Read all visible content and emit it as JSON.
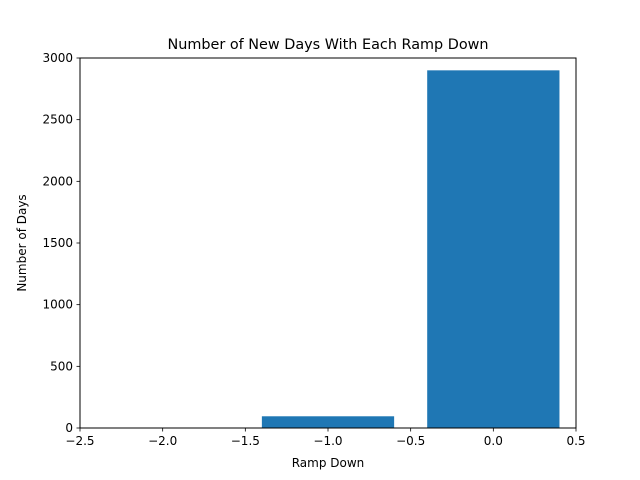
{
  "chart_data": {
    "type": "bar",
    "title": "Number of New Days With Each Ramp Down",
    "xlabel": "Ramp Down",
    "ylabel": "Number of Days",
    "xlim": [
      -2.5,
      0.5
    ],
    "ylim": [
      0,
      3000
    ],
    "bar_width": 0.8,
    "x": [
      -2,
      -1,
      0
    ],
    "values": [
      0,
      95,
      2900
    ],
    "xticks": [
      -2.5,
      -2.0,
      -1.5,
      -1.0,
      -0.5,
      0.0,
      0.5
    ],
    "xtick_labels": [
      "−2.5",
      "−2.0",
      "−1.5",
      "−1.0",
      "−0.5",
      "0.0",
      "0.5"
    ],
    "yticks": [
      0,
      500,
      1000,
      1500,
      2000,
      2500,
      3000
    ],
    "ytick_labels": [
      "0",
      "500",
      "1000",
      "1500",
      "2000",
      "2500",
      "3000"
    ],
    "grid": false,
    "bar_color": "#1f77b4"
  }
}
